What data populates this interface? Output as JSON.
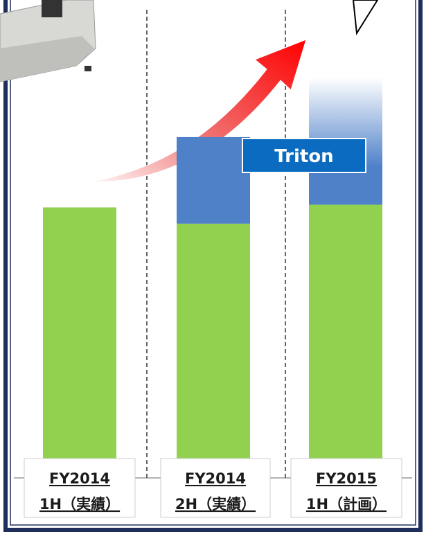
{
  "chart_data": {
    "type": "stacked-bar",
    "categories": [
      "FY2014",
      "FY2014",
      "FY2015"
    ],
    "periods": [
      "1H（実績）",
      "2H（実績）",
      "1H（計画）"
    ],
    "series": [
      {
        "color": "#92d050",
        "values": [
          100,
          94,
          101
        ]
      },
      {
        "name": "Triton",
        "color": "#4f81c9",
        "values": [
          null,
          32,
          47
        ]
      }
    ]
  }
}
